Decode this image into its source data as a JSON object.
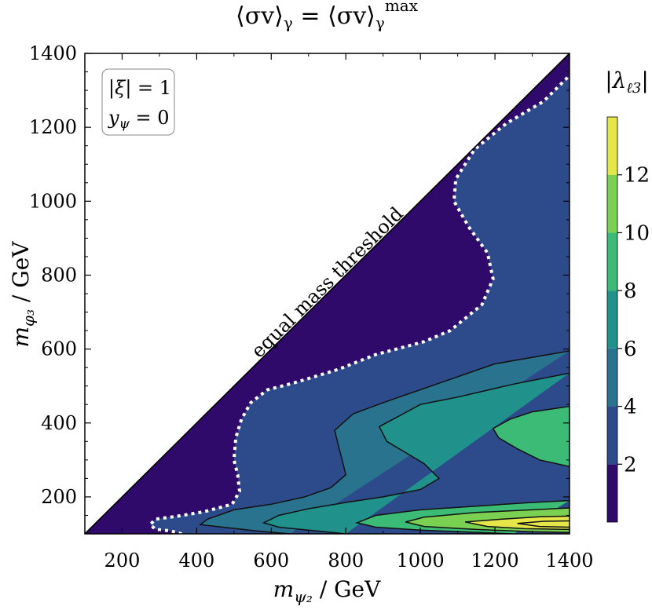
{
  "chart_data": {
    "type": "contour",
    "title": "⟨σv⟩γ = ⟨σv⟩γ^max",
    "xlabel": "mψ₂ / GeV",
    "ylabel": "mφ₃ / GeV",
    "xlim": [
      100,
      1400
    ],
    "ylim": [
      100,
      1400
    ],
    "xticks": [
      200,
      400,
      600,
      800,
      1000,
      1200,
      1400
    ],
    "yticks": [
      200,
      400,
      600,
      800,
      1000,
      1200,
      1400
    ],
    "legend_box": [
      "|ξ| = 1",
      "yψ = 0"
    ],
    "threshold_label": "equal mass threshold",
    "colorbar": {
      "label": "|λℓ3|",
      "levels": [
        0,
        2,
        4,
        6,
        8,
        10,
        12,
        14
      ],
      "ticks": [
        2,
        4,
        6,
        8,
        10,
        12
      ],
      "colors": [
        "#2f0a6b",
        "#2d4a8a",
        "#2a738e",
        "#21918c",
        "#3bbb75",
        "#7ad151",
        "#e4e64a"
      ]
    },
    "contours": [
      {
        "level": 2,
        "style": "dotted-white",
        "points": [
          [
            360,
            100
          ],
          [
            330,
            108
          ],
          [
            290,
            112
          ],
          [
            275,
            125
          ],
          [
            290,
            140
          ],
          [
            350,
            148
          ],
          [
            420,
            160
          ],
          [
            495,
            180
          ],
          [
            515,
            215
          ],
          [
            510,
            260
          ],
          [
            500,
            300
          ],
          [
            505,
            360
          ],
          [
            520,
            410
          ],
          [
            545,
            455
          ],
          [
            590,
            490
          ],
          [
            660,
            508
          ],
          [
            780,
            545
          ],
          [
            880,
            585
          ],
          [
            1010,
            620
          ],
          [
            1080,
            650
          ],
          [
            1165,
            720
          ],
          [
            1195,
            790
          ],
          [
            1180,
            860
          ],
          [
            1130,
            930
          ],
          [
            1090,
            1000
          ],
          [
            1095,
            1060
          ],
          [
            1145,
            1140
          ],
          [
            1230,
            1210
          ],
          [
            1330,
            1270
          ],
          [
            1400,
            1340
          ]
        ]
      },
      {
        "level": 4,
        "style": "solid",
        "points": [
          [
            1400,
            595
          ],
          [
            1200,
            560
          ],
          [
            1000,
            490
          ],
          [
            900,
            455
          ],
          [
            820,
            425
          ],
          [
            770,
            380
          ],
          [
            780,
            340
          ],
          [
            790,
            300
          ],
          [
            800,
            260
          ],
          [
            760,
            225
          ],
          [
            690,
            200
          ],
          [
            600,
            180
          ],
          [
            500,
            165
          ],
          [
            430,
            140
          ],
          [
            410,
            125
          ],
          [
            470,
            118
          ],
          [
            560,
            108
          ],
          [
            650,
            100
          ]
        ]
      },
      {
        "level": 6,
        "style": "solid",
        "points": [
          [
            1400,
            535
          ],
          [
            1250,
            505
          ],
          [
            1100,
            470
          ],
          [
            1000,
            450
          ],
          [
            890,
            390
          ],
          [
            910,
            350
          ],
          [
            960,
            320
          ],
          [
            1010,
            290
          ],
          [
            1050,
            250
          ],
          [
            1000,
            220
          ],
          [
            900,
            200
          ],
          [
            800,
            185
          ],
          [
            700,
            168
          ],
          [
            620,
            150
          ],
          [
            580,
            130
          ],
          [
            620,
            118
          ],
          [
            700,
            110
          ],
          [
            800,
            100
          ]
        ]
      },
      {
        "level": 8,
        "style": "solid",
        "points": [
          [
            1400,
            445
          ],
          [
            1300,
            430
          ],
          [
            1240,
            410
          ],
          [
            1195,
            385
          ],
          [
            1210,
            360
          ],
          [
            1260,
            330
          ],
          [
            1320,
            300
          ],
          [
            1400,
            282
          ]
        ]
      },
      {
        "level": 8,
        "style": "solid",
        "points": [
          [
            1400,
            190
          ],
          [
            1300,
            185
          ],
          [
            1150,
            175
          ],
          [
            1000,
            165
          ],
          [
            880,
            150
          ],
          [
            830,
            130
          ],
          [
            880,
            118
          ],
          [
            1000,
            110
          ],
          [
            1150,
            104
          ],
          [
            1250,
            100
          ]
        ]
      },
      {
        "level": 10,
        "style": "solid",
        "points": [
          [
            1400,
            170
          ],
          [
            1300,
            165
          ],
          [
            1150,
            158
          ],
          [
            1010,
            145
          ],
          [
            960,
            132
          ],
          [
            1010,
            120
          ],
          [
            1150,
            112
          ],
          [
            1300,
            106
          ],
          [
            1400,
            104
          ]
        ]
      },
      {
        "level": 12,
        "style": "solid",
        "points": [
          [
            1400,
            148
          ],
          [
            1320,
            146
          ],
          [
            1220,
            140
          ],
          [
            1120,
            132
          ],
          [
            1180,
            120
          ],
          [
            1280,
            114
          ],
          [
            1400,
            112
          ]
        ]
      },
      {
        "level": 14,
        "style": "solid",
        "points": [
          [
            1400,
            135
          ],
          [
            1330,
            134
          ],
          [
            1260,
            128
          ],
          [
            1320,
            120
          ],
          [
            1400,
            118
          ]
        ]
      }
    ]
  }
}
